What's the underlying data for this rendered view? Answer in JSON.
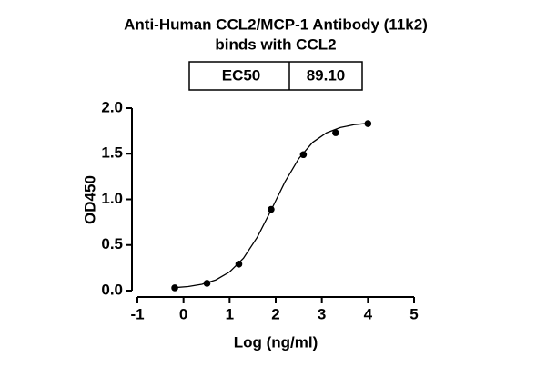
{
  "chart_data": {
    "type": "scatter",
    "title": [
      "Anti-Human CCL2/MCP-1 Antibody (11k2)",
      "binds with CCL2"
    ],
    "ec50_table": [
      "EC50",
      "89.10"
    ],
    "x_label": "Log (ng/ml)",
    "y_label": "OD450",
    "xlim": [
      -1,
      5
    ],
    "xticks": [
      -1,
      0,
      1,
      2,
      3,
      4,
      5
    ],
    "ylim": [
      0,
      2
    ],
    "yticks": [
      {
        "value": 0,
        "label": "0.0"
      },
      0.5,
      {
        "value": 1,
        "label": "1.0"
      },
      1.5,
      {
        "value": 2,
        "label": "2.0"
      }
    ],
    "color": "#000000",
    "series": [
      {
        "x": [
          -0.19,
          0.51,
          1.2,
          1.9,
          2.6,
          3.3,
          4.0
        ],
        "values": [
          0.03,
          0.08,
          0.29,
          0.89,
          1.49,
          1.73,
          1.83
        ],
        "color": "#000000"
      }
    ],
    "fit": {
      "x": [
        -0.2,
        0.1,
        0.4,
        0.7,
        1.0,
        1.3,
        1.6,
        1.9,
        2.2,
        2.5,
        2.8,
        3.1,
        3.4,
        3.7,
        4.0
      ],
      "values": [
        0.033,
        0.045,
        0.07,
        0.117,
        0.205,
        0.355,
        0.585,
        0.882,
        1.191,
        1.447,
        1.624,
        1.729,
        1.787,
        1.818,
        1.834
      ]
    }
  }
}
